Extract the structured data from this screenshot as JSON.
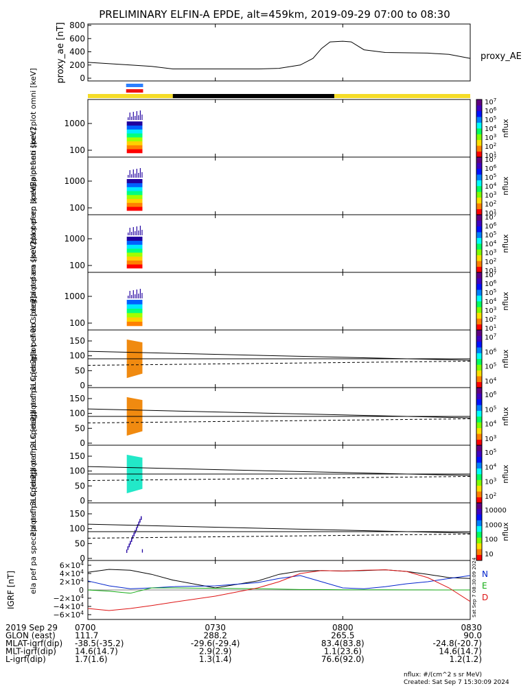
{
  "title": "PRELIMINARY ELFIN-A EPDE, alt=459km, 2019-09-29 07:00 to 08:30",
  "ae": {
    "ylabel": "proxy_ae [nT]",
    "series_label": "proxy_AE",
    "ticks": [
      "0",
      "200",
      "400",
      "600",
      "800"
    ]
  },
  "bar": {
    "segments": [
      {
        "color": "#f5dc28",
        "from": "07:00",
        "to": "07:20"
      },
      {
        "color": "#000000",
        "from": "07:20",
        "to": "07:58"
      },
      {
        "color": "#f5dc28",
        "from": "07:58",
        "to": "08:30"
      }
    ],
    "markers": [
      "#2b7fff",
      "#ee1111"
    ]
  },
  "spec_panels": [
    {
      "ylabel": "ela pef en spec2plot omni [keV]",
      "ticks": [
        "100",
        "1000"
      ],
      "cbar_ticks": [
        "10",
        "10",
        "10",
        "10",
        "10",
        "10",
        "10"
      ],
      "cbar_exps": [
        "1",
        "2",
        "3",
        "4",
        "5",
        "6",
        "7"
      ],
      "cbar_label": "nflux"
    },
    {
      "ylabel": "ela pef en spec2plot anti [keV]",
      "ticks": [
        "100",
        "1000"
      ],
      "cbar_ticks": [
        "10",
        "10",
        "10",
        "10",
        "10",
        "10",
        "10"
      ],
      "cbar_exps": [
        "1",
        "2",
        "3",
        "4",
        "5",
        "6",
        "7"
      ],
      "cbar_label": "nflux"
    },
    {
      "ylabel": "ela pef en spec2plot perp [keV]",
      "ticks": [
        "100",
        "1000"
      ],
      "cbar_ticks": [
        "10",
        "10",
        "10",
        "10",
        "10",
        "10",
        "10"
      ],
      "cbar_exps": [
        "1",
        "2",
        "3",
        "4",
        "5",
        "6",
        "7"
      ],
      "cbar_label": "nflux"
    },
    {
      "ylabel": "ela pef en spec2plot para [keV]",
      "ticks": [
        "100",
        "1000"
      ],
      "cbar_ticks": [
        "10",
        "10",
        "10",
        "10",
        "10",
        "10",
        "10"
      ],
      "cbar_exps": [
        "1",
        "2",
        "3",
        "4",
        "5",
        "6",
        "7"
      ],
      "cbar_label": "nflux"
    }
  ],
  "pa_panels": [
    {
      "ylabel": "ela pef pa spec2plot ch0LC [deg]",
      "ticks": [
        "0",
        "50",
        "100",
        "150"
      ],
      "cbar_ticks": [
        "10",
        "10",
        "10",
        "10"
      ],
      "cbar_exps": [
        "4",
        "5",
        "6",
        "7"
      ],
      "cbar_label": "nflux",
      "fill": "#f08a10"
    },
    {
      "ylabel": "ela pef pa spec2plot ch1LC [deg]",
      "ticks": [
        "0",
        "50",
        "100",
        "150"
      ],
      "cbar_ticks": [
        "10",
        "10",
        "10",
        "10"
      ],
      "cbar_exps": [
        "3",
        "4",
        "5",
        "6"
      ],
      "cbar_label": "nflux",
      "fill": "#f08a10"
    },
    {
      "ylabel": "ela pef pa spec2plot ch2LC [deg]",
      "ticks": [
        "0",
        "50",
        "100",
        "150"
      ],
      "cbar_ticks": [
        "10",
        "10",
        "10",
        "10"
      ],
      "cbar_exps": [
        "2",
        "3",
        "4",
        "5"
      ],
      "cbar_label": "nflux",
      "fill": "#22e8c8"
    },
    {
      "ylabel": "ela pef pa spec2plot ch3LC [deg]",
      "ticks": [
        "0",
        "50",
        "100",
        "150"
      ],
      "cbar_ticks": [
        "10",
        "100",
        "1000",
        "10000"
      ],
      "cbar_exps": [
        "",
        "",
        "",
        ""
      ],
      "cbar_label": "nflux",
      "fill": "none"
    }
  ],
  "igrf": {
    "ylabel": "IGRF [nT]",
    "ticks": [
      {
        "mant": "6×10",
        "exp": "4"
      },
      {
        "mant": "4×10",
        "exp": "4"
      },
      {
        "mant": "2×10",
        "exp": "4"
      },
      {
        "mant": "0",
        "exp": ""
      },
      {
        "mant": "−2×10",
        "exp": "4"
      },
      {
        "mant": "−4×10",
        "exp": "4"
      },
      {
        "mant": "−6×10",
        "exp": "4"
      }
    ],
    "legend": [
      {
        "label": "N",
        "color": "#0022cc"
      },
      {
        "label": "E",
        "color": "#11aa11"
      },
      {
        "label": "D",
        "color": "#dd1111"
      }
    ],
    "side_stamp": "Sat Sep  7 08:30:09 2024"
  },
  "chart_data": {
    "type": "line",
    "x_range": [
      "2019-09-29 07:00",
      "2019-09-29 08:30"
    ],
    "proxy_ae": {
      "name": "proxy_AE",
      "ylim": [
        0,
        800
      ],
      "t_min": [
        0,
        10,
        15,
        20,
        30,
        40,
        45,
        50,
        53,
        55,
        57,
        60,
        62,
        65,
        70,
        80,
        85,
        90
      ],
      "values": [
        240,
        200,
        180,
        140,
        140,
        140,
        150,
        200,
        300,
        450,
        550,
        560,
        550,
        430,
        390,
        380,
        360,
        300
      ]
    },
    "igrf": {
      "ylim": [
        -70000,
        70000
      ],
      "t_min": [
        0,
        5,
        10,
        15,
        20,
        30,
        40,
        45,
        50,
        55,
        60,
        65,
        70,
        75,
        80,
        85,
        90
      ],
      "series": [
        {
          "name": "total",
          "values": [
            43000,
            50000,
            48000,
            38000,
            24000,
            5000,
            22000,
            38000,
            46000,
            47000,
            46000,
            47000,
            49000,
            45000,
            38000,
            30000,
            28000
          ]
        },
        {
          "name": "N",
          "values": [
            22000,
            10000,
            3000,
            5000,
            8000,
            10000,
            18000,
            28000,
            35000,
            20000,
            5000,
            3000,
            8000,
            15000,
            20000,
            28000,
            35000
          ]
        },
        {
          "name": "E",
          "values": [
            0,
            -3000,
            -8000,
            5000,
            5000,
            4000,
            3000,
            2000,
            1000,
            1000,
            500,
            500,
            300,
            200,
            100,
            0,
            0
          ]
        },
        {
          "name": "D",
          "values": [
            -45000,
            -50000,
            -45000,
            -38000,
            -30000,
            -15000,
            5000,
            20000,
            40000,
            47000,
            46000,
            48000,
            49000,
            45000,
            30000,
            5000,
            -28000
          ]
        }
      ]
    },
    "x_ticks": [
      {
        "t": "0700",
        "glon": "111.7",
        "mlat": "-38.5(-35.2)",
        "mlt": "14.6(14.7)",
        "l": "1.7(1.6)"
      },
      {
        "t": "0730",
        "glon": "288.2",
        "mlat": "-29.6(-29.4)",
        "mlt": "2.9(2.9)",
        "l": "1.3(1.4)"
      },
      {
        "t": "0800",
        "glon": "265.5",
        "mlat": "83.4(83.8)",
        "mlt": "1.1(23.6)",
        "l": "76.6(92.0)"
      },
      {
        "t": "0830",
        "glon": "90.0",
        "mlat": "-24.8(-20.7)",
        "mlt": "14.6(14.7)",
        "l": "1.2(1.2)"
      }
    ],
    "row_labels": {
      "date": "2019 Sep 29",
      "glon": "GLON (east)",
      "mlat": "MLAT-igrf(dip)",
      "mlt": "MLT-igrf(dip)",
      "l": "L-igrf(dip)"
    },
    "pitch_angle_lines": {
      "upper_start": 115,
      "upper_end": 85,
      "mid": 90,
      "dashed_start": 68,
      "dashed_end": 82
    },
    "burst_window_min": [
      9,
      13
    ]
  },
  "footer": {
    "units": "nflux: #/(cm^2 s sr MeV)",
    "created": "Created: Sat Sep  7 15:30:09 2024"
  }
}
